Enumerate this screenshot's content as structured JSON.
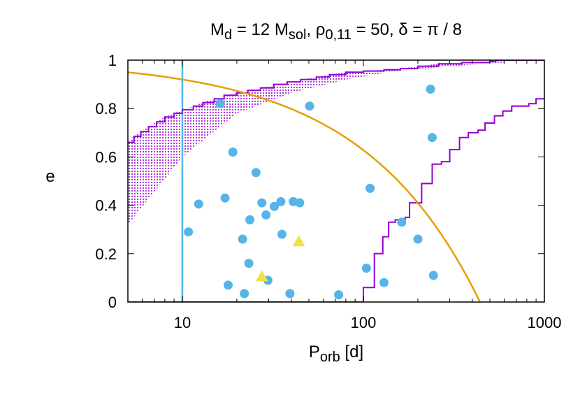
{
  "chart_data": {
    "type": "scatter",
    "title": {
      "parts": [
        {
          "t": "M"
        },
        {
          "t": "d",
          "sub": true
        },
        {
          "t": " = 12 M"
        },
        {
          "t": "sol",
          "sub": true
        },
        {
          "t": ",  ρ"
        },
        {
          "t": "0,11",
          "sub": true
        },
        {
          "t": " = 50,  δ = π / 8"
        }
      ]
    },
    "xlabel": {
      "parts": [
        {
          "t": "P"
        },
        {
          "t": "orb",
          "sub": true
        },
        {
          "t": " [d]"
        }
      ]
    },
    "ylabel": "e",
    "xscale": "log",
    "xlim": [
      5,
      1000
    ],
    "ylim": [
      0,
      1
    ],
    "xticks": [
      {
        "value": 10,
        "label": "10"
      },
      {
        "value": 100,
        "label": "100"
      },
      {
        "value": 1000,
        "label": "1000"
      }
    ],
    "yticks": [
      {
        "value": 0,
        "label": "0"
      },
      {
        "value": 0.2,
        "label": "0.2"
      },
      {
        "value": 0.4,
        "label": "0.4"
      },
      {
        "value": 0.6,
        "label": "0.6"
      },
      {
        "value": 0.8,
        "label": "0.8"
      },
      {
        "value": 1,
        "label": "1"
      }
    ],
    "grid": false,
    "colors": {
      "circles": "#56b4e9",
      "triangles": "#f0e442",
      "purple": "#9400d3",
      "orange": "#e69f00",
      "vline": "#56b4e9"
    },
    "vertical_line_x": 10,
    "circle_points": [
      [
        10.8,
        0.29
      ],
      [
        12.3,
        0.405
      ],
      [
        16.2,
        0.82
      ],
      [
        17.2,
        0.43
      ],
      [
        17.9,
        0.07
      ],
      [
        19,
        0.62
      ],
      [
        21.5,
        0.26
      ],
      [
        22,
        0.035
      ],
      [
        23.3,
        0.16
      ],
      [
        23.6,
        0.34
      ],
      [
        25.5,
        0.535
      ],
      [
        27.5,
        0.41
      ],
      [
        29,
        0.36
      ],
      [
        29.7,
        0.09
      ],
      [
        32.2,
        0.395
      ],
      [
        35,
        0.415
      ],
      [
        35.5,
        0.28
      ],
      [
        39.3,
        0.035
      ],
      [
        41,
        0.415
      ],
      [
        44.5,
        0.41
      ],
      [
        50.5,
        0.81
      ],
      [
        73,
        0.03
      ],
      [
        104,
        0.14
      ],
      [
        109,
        0.47
      ],
      [
        130,
        0.08
      ],
      [
        163,
        0.33
      ],
      [
        200,
        0.26
      ],
      [
        235,
        0.88
      ],
      [
        240,
        0.68
      ],
      [
        244,
        0.11
      ]
    ],
    "triangle_points": [
      [
        27.5,
        0.105
      ],
      [
        44,
        0.25
      ]
    ],
    "upper_step_line": [
      [
        5,
        0.66
      ],
      [
        5.4,
        0.685
      ],
      [
        5.9,
        0.705
      ],
      [
        6.5,
        0.725
      ],
      [
        7.2,
        0.745
      ],
      [
        8,
        0.765
      ],
      [
        9,
        0.78
      ],
      [
        10,
        0.795
      ],
      [
        11.5,
        0.81
      ],
      [
        13,
        0.825
      ],
      [
        15,
        0.84
      ],
      [
        17,
        0.855
      ],
      [
        20,
        0.865
      ],
      [
        23,
        0.875
      ],
      [
        27,
        0.885
      ],
      [
        32,
        0.9
      ],
      [
        38,
        0.91
      ],
      [
        45,
        0.92
      ],
      [
        55,
        0.93
      ],
      [
        65,
        0.94
      ],
      [
        80,
        0.95
      ],
      [
        100,
        0.955
      ],
      [
        130,
        0.96
      ],
      [
        160,
        0.965
      ],
      [
        200,
        0.975
      ],
      [
        260,
        0.985
      ],
      [
        350,
        0.99
      ],
      [
        500,
        0.995
      ],
      [
        540,
        1.0
      ],
      [
        1000,
        1.0
      ]
    ],
    "right_step_line": [
      [
        5,
        0
      ],
      [
        92,
        0
      ],
      [
        100,
        0.06
      ],
      [
        115,
        0.2
      ],
      [
        128,
        0.27
      ],
      [
        138,
        0.33
      ],
      [
        150,
        0.34
      ],
      [
        170,
        0.35
      ],
      [
        180,
        0.41
      ],
      [
        210,
        0.49
      ],
      [
        240,
        0.57
      ],
      [
        270,
        0.58
      ],
      [
        300,
        0.63
      ],
      [
        340,
        0.68
      ],
      [
        380,
        0.7
      ],
      [
        430,
        0.71
      ],
      [
        470,
        0.74
      ],
      [
        530,
        0.77
      ],
      [
        590,
        0.79
      ],
      [
        660,
        0.81
      ],
      [
        740,
        0.81
      ],
      [
        820,
        0.82
      ],
      [
        900,
        0.84
      ],
      [
        1000,
        0.845
      ]
    ],
    "orange_curve": {
      "formula": "1 - (P/441)^(2/3)",
      "P_end": 441
    },
    "hatched_region": {
      "x_range": [
        5,
        600
      ],
      "lower_bound": [
        [
          5,
          0.32
        ],
        [
          10,
          0.6
        ],
        [
          20,
          0.78
        ],
        [
          40,
          0.865
        ],
        [
          80,
          0.92
        ],
        [
          150,
          0.955
        ],
        [
          300,
          0.975
        ],
        [
          600,
          0.99
        ]
      ],
      "upper_bound": "upper_step_line"
    }
  }
}
